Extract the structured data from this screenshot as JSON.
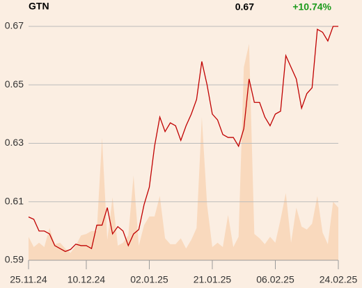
{
  "chart_data": {
    "type": "line",
    "title": "GTN",
    "last_price": "0.67",
    "change": "+10.74%",
    "change_color": "#1a9a1a",
    "color": "#c00000",
    "volume_color": "#f9d9bd",
    "categories": [
      "25.11.24",
      null,
      null,
      null,
      null,
      null,
      null,
      null,
      null,
      null,
      null,
      "10.12.24",
      null,
      null,
      null,
      null,
      null,
      null,
      null,
      null,
      null,
      null,
      null,
      "02.01.25",
      null,
      null,
      null,
      null,
      null,
      null,
      null,
      null,
      null,
      null,
      null,
      "21.01.25",
      null,
      null,
      null,
      null,
      null,
      null,
      null,
      null,
      null,
      null,
      null,
      "06.02.25",
      null,
      null,
      null,
      null,
      null,
      null,
      null,
      null,
      null,
      null,
      null,
      "24.02.25"
    ],
    "values": [
      0.6048,
      0.604,
      0.6,
      0.6,
      0.599,
      0.595,
      0.594,
      0.593,
      0.5937,
      0.5955,
      0.595,
      0.595,
      0.594,
      0.602,
      0.602,
      0.608,
      0.599,
      0.6015,
      0.6,
      0.595,
      0.599,
      0.6005,
      0.609,
      0.615,
      0.629,
      0.639,
      0.634,
      0.637,
      0.636,
      0.631,
      0.636,
      0.64,
      0.645,
      0.658,
      0.65,
      0.64,
      0.638,
      0.633,
      0.632,
      0.632,
      0.629,
      0.635,
      0.652,
      0.644,
      0.644,
      0.639,
      0.636,
      0.64,
      0.641,
      0.66,
      0.656,
      0.652,
      0.642,
      0.647,
      0.649,
      0.669,
      0.668,
      0.665,
      0.67,
      0.67
    ],
    "volume": [
      0.598,
      0.5945,
      0.596,
      0.5945,
      0.601,
      0.5955,
      0.596,
      0.594,
      0.5925,
      0.595,
      0.5985,
      0.599,
      0.6,
      0.6,
      0.632,
      0.597,
      0.6115,
      0.595,
      0.596,
      0.5985,
      0.619,
      0.595,
      0.602,
      0.605,
      0.605,
      0.612,
      0.5975,
      0.5955,
      0.5955,
      0.5975,
      0.594,
      0.597,
      0.601,
      0.639,
      0.609,
      0.5945,
      0.596,
      0.5945,
      0.6055,
      0.5945,
      0.598,
      0.656,
      0.664,
      0.599,
      0.5975,
      0.5955,
      0.598,
      0.596,
      0.604,
      0.613,
      0.596,
      0.608,
      0.6015,
      0.6005,
      0.6025,
      0.612,
      0.5995,
      0.5955,
      0.61,
      0.608
    ],
    "ylim": [
      0.59,
      0.67
    ],
    "yticks": [
      0.59,
      0.61,
      0.63,
      0.65,
      0.67
    ],
    "grid": true
  }
}
